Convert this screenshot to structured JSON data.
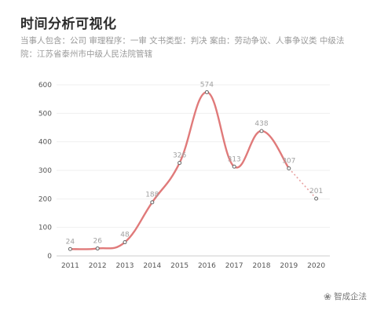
{
  "page": {
    "title": "时间分析可视化",
    "description": "当事人包含：公司 审理程序：一审 文书类型：判决 案由：劳动争议、人事争议类 中级法院：江苏省泰州市中级人民法院管辖"
  },
  "watermark": {
    "icon": "wechat-icon",
    "text": "智成企法"
  },
  "colors": {
    "line": "#e07a7a",
    "grid": "#efefef",
    "axis": "#cccccc"
  },
  "chart_data": {
    "type": "line",
    "title": "",
    "xlabel": "",
    "ylabel": "",
    "categories": [
      "2011",
      "2012",
      "2013",
      "2014",
      "2015",
      "2016",
      "2017",
      "2018",
      "2019",
      "2020"
    ],
    "values": [
      24,
      26,
      48,
      188,
      326,
      574,
      313,
      438,
      307,
      201
    ],
    "data_labels": [
      "24",
      "26",
      "48",
      "188",
      "326",
      "574",
      "313",
      "438",
      "307",
      "201"
    ],
    "dashed_last_segment": true,
    "ylim": [
      0,
      600
    ],
    "yticks": [
      0,
      100,
      200,
      300,
      400,
      500,
      600
    ],
    "grid": true,
    "legend": "none"
  }
}
